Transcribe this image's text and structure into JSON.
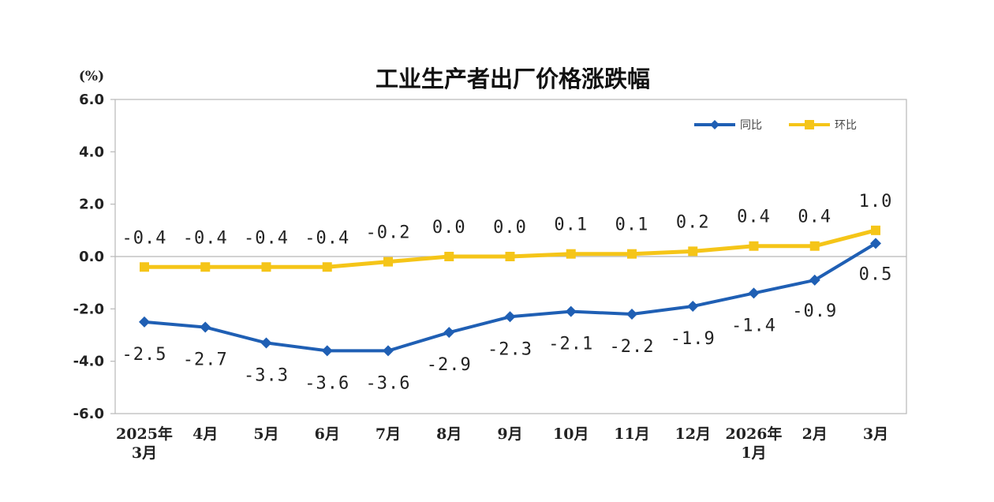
{
  "chart_data": {
    "type": "line",
    "title": "工业生产者出厂价格涨跌幅",
    "ylabel": "(%)",
    "ylim": [
      -6,
      6
    ],
    "yticks": [
      "6.0",
      "4.0",
      "2.0",
      "0.0",
      "-2.0",
      "-4.0",
      "-6.0"
    ],
    "categories": [
      [
        "2025年",
        "3月"
      ],
      [
        "4月"
      ],
      [
        "5月"
      ],
      [
        "6月"
      ],
      [
        "7月"
      ],
      [
        "8月"
      ],
      [
        "9月"
      ],
      [
        "10月"
      ],
      [
        "11月"
      ],
      [
        "12月"
      ],
      [
        "2026年",
        "1月"
      ],
      [
        "2月"
      ],
      [
        "3月"
      ]
    ],
    "series": [
      {
        "name": "同比",
        "color": "#1f5fb4",
        "marker": "diamond",
        "values": [
          -2.5,
          -2.7,
          -3.3,
          -3.6,
          -3.6,
          -2.9,
          -2.3,
          -2.1,
          -2.2,
          -1.9,
          -1.4,
          -0.9,
          0.5
        ],
        "labels": [
          "-2.5",
          "-2.7",
          "-3.3",
          "-3.6",
          "-3.6",
          "-2.9",
          "-2.3",
          "-2.1",
          "-2.2",
          "-1.9",
          "-1.4",
          "-0.9",
          "0.5"
        ]
      },
      {
        "name": "环比",
        "color": "#f5c518",
        "marker": "square",
        "values": [
          -0.4,
          -0.4,
          -0.4,
          -0.4,
          -0.2,
          0.0,
          0.0,
          0.1,
          0.1,
          0.2,
          0.4,
          0.4,
          1.0
        ],
        "labels": [
          "-0.4",
          "-0.4",
          "-0.4",
          "-0.4",
          "-0.2",
          "0.0",
          "0.0",
          "0.1",
          "0.1",
          "0.2",
          "0.4",
          "0.4",
          "1.0"
        ]
      }
    ],
    "legend": "top-right",
    "grid": false
  }
}
